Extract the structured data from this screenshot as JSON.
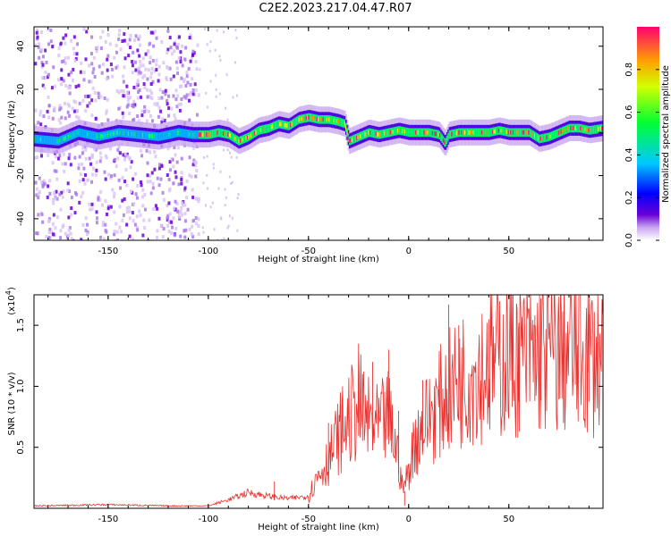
{
  "title": "C2E2.2023.217.04.47.R07",
  "chart_data": [
    {
      "type": "heatmap",
      "xlabel": "Height of straight line (km)",
      "ylabel": "Frequency (Hz)",
      "xlim": [
        -187,
        97
      ],
      "ylim": [
        -50,
        49
      ],
      "xticks": [
        -150,
        -100,
        -50,
        0,
        50
      ],
      "yticks": [
        -40,
        -20,
        0,
        20,
        40
      ],
      "colorbar": {
        "label": "Normalized spectral amplitude",
        "range": [
          0,
          1
        ],
        "ticks": [
          0.0,
          0.2,
          0.4,
          0.6,
          0.8
        ]
      },
      "ridge": {
        "x": [
          -187,
          -175,
          -165,
          -155,
          -145,
          -135,
          -125,
          -115,
          -108,
          -100,
          -95,
          -90,
          -85,
          -80,
          -75,
          -70,
          -65,
          -60,
          -55,
          -50,
          -45,
          -40,
          -35,
          -32,
          -30,
          -25,
          -20,
          -15,
          -10,
          -5,
          0,
          5,
          10,
          15,
          18,
          20,
          25,
          30,
          35,
          40,
          45,
          50,
          55,
          60,
          65,
          70,
          75,
          80,
          85,
          90,
          97
        ],
        "y": [
          -3,
          -4,
          0,
          -2,
          0,
          -1,
          -2,
          0,
          -1,
          -1,
          0,
          -1,
          -4,
          -2,
          1,
          2,
          4,
          3,
          6,
          7,
          6,
          6,
          5,
          4,
          -4,
          -2,
          0,
          -1,
          0,
          1,
          0,
          0,
          0,
          -1,
          -5,
          -1,
          0,
          0,
          0,
          0,
          1,
          0,
          0,
          0,
          -3,
          -2,
          0,
          2,
          2,
          1,
          2
        ]
      },
      "noise_region_x": [
        -187,
        -105
      ]
    },
    {
      "type": "line",
      "xlabel": "Height of straight line (km)",
      "ylabel": "SNR (10 * v/v)",
      "exponent_label": "(x10",
      "exponent": "4",
      "exponent_close": ")",
      "xlim": [
        -187,
        97
      ],
      "ylim": [
        0,
        1.75
      ],
      "xticks": [
        -150,
        -100,
        -50,
        0,
        50
      ],
      "yticks": [
        0.5,
        1.0,
        1.5
      ],
      "ytick_labels": [
        "0.5",
        "1.0",
        "1.5"
      ],
      "color": "#e8322f",
      "envelope": {
        "x": [
          -187,
          -150,
          -120,
          -100,
          -90,
          -80,
          -70,
          -60,
          -50,
          -45,
          -40,
          -35,
          -30,
          -25,
          -20,
          -15,
          -10,
          -5,
          -3,
          0,
          3,
          10,
          20,
          30,
          40,
          50,
          60,
          70,
          80,
          90,
          97
        ],
        "y": [
          0.02,
          0.03,
          0.02,
          0.02,
          0.07,
          0.13,
          0.1,
          0.08,
          0.1,
          0.28,
          0.4,
          0.6,
          0.72,
          0.85,
          0.7,
          0.65,
          0.75,
          0.4,
          0.15,
          0.3,
          0.55,
          0.75,
          0.95,
          1.1,
          1.18,
          1.25,
          1.25,
          1.27,
          1.28,
          1.25,
          1.25
        ]
      },
      "spikes": {
        "x": [
          -67,
          -40,
          -33,
          -25,
          -23,
          -18,
          -10,
          -5,
          -2,
          7,
          20,
          25,
          40,
          55,
          63,
          66,
          75,
          90
        ],
        "y": [
          0.22,
          0.7,
          1.0,
          1.35,
          1.1,
          1.2,
          1.3,
          0.8,
          0.02,
          1.05,
          1.67,
          1.5,
          1.55,
          1.52,
          1.58,
          1.72,
          1.57,
          1.59
        ]
      }
    }
  ]
}
